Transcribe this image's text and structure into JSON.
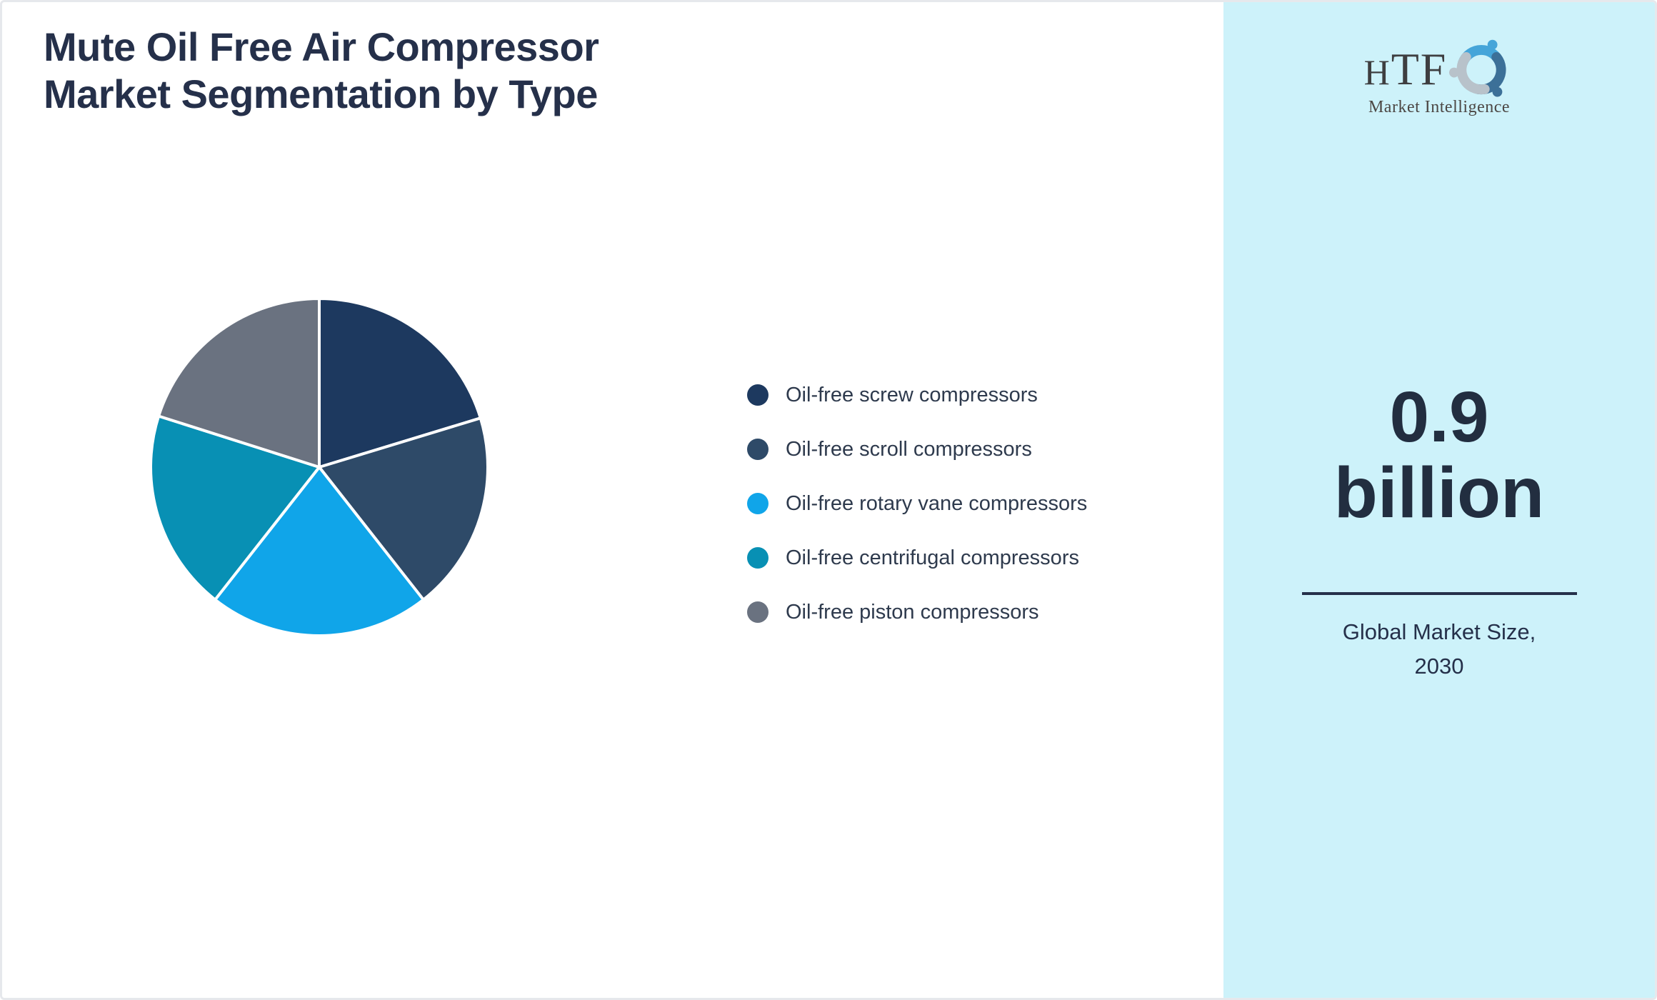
{
  "title": {
    "lines": [
      "Mute Oil Free Air Compressor",
      "Market Segmentation by Type"
    ]
  },
  "chart_data": {
    "type": "pie",
    "title": "Mute Oil Free Air Compressor Market Segmentation by Type",
    "labels": [
      "Oil-free screw compressors",
      "Oil-free scroll compressors",
      "Oil-free rotary vane compressors",
      "Oil-free centrifugal compressors",
      "Oil-free piston compressors"
    ],
    "values": [
      20.3,
      19.1,
      21.2,
      19.3,
      20.1
    ],
    "colors": [
      "#1d395f",
      "#2e4a68",
      "#10a5e9",
      "#0890b4",
      "#6a7280"
    ],
    "start_angle": "top",
    "direction": "clockwise",
    "legend_position": "right",
    "slice_gap_color": "#ffffff"
  },
  "sidebar": {
    "bg_color": "#cdf2fa",
    "logo": {
      "text": "HTF",
      "subtext": "Market Intelligence",
      "swirl_colors": [
        "#45a5d9",
        "#3c7098",
        "#b8c2ca"
      ]
    },
    "market_size": {
      "lines": [
        "0.9",
        "billion"
      ]
    },
    "caption": {
      "lines": [
        "Global Market Size,",
        "2030"
      ]
    }
  },
  "theme": {
    "text_dark": "#25304a",
    "divider_color": "#25304a",
    "frame_border": "#e6e8ec"
  }
}
